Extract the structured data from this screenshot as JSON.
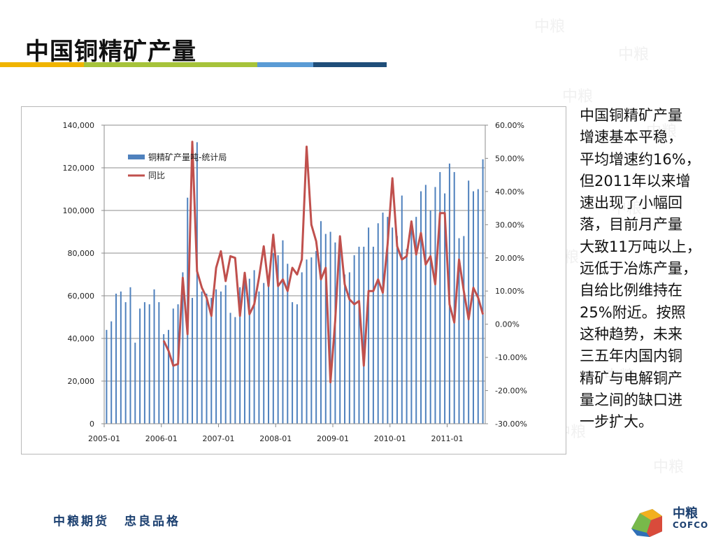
{
  "page": {
    "title": "中国铜精矿产量",
    "description": "中国铜精矿产量增速基本平稳，平均增速约16%，但2011年以来增速出现了小幅回落，目前月产量大致11万吨以上，远低于冶炼产量，自给比例维持在25%附近。按照这种趋势，未来三五年内国内铜精矿与电解铜产量之间的缺口进一步扩大。",
    "description_lines": [
      "中国铜精矿产量",
      "增速基本平稳，",
      "平均增速约16%，",
      "但2011年以来增",
      "速出现了小幅回",
      "落，目前月产量",
      "大致11万吨以上，",
      "远低于冶炼产量，",
      "自给比例维持在",
      "25%附近。按照",
      "这种趋势，未来",
      "三五年内国内铜",
      "精矿与电解铜产",
      "量之间的缺口进",
      "一步扩大。"
    ],
    "footer_left": [
      "中粮期货",
      "忠良品格"
    ],
    "logo_cn": "中粮",
    "logo_en": "COFCO",
    "colors": {
      "bar": "#4f81bd",
      "line": "#c0504d",
      "title_rule": [
        "#f0b400",
        "#a6c33a",
        "#5a9bd5",
        "#1f4e79"
      ],
      "footer_text": "#1c4070"
    },
    "watermark_text": "中粮"
  },
  "chart_data": {
    "type": "bar",
    "x_tick_labels": [
      "2005-01",
      "2006-01",
      "2007-01",
      "2008-01",
      "2009-01",
      "2010-01",
      "2011-01"
    ],
    "y_left_ticks": [
      "0",
      "20,000",
      "40,000",
      "60,000",
      "80,000",
      "100,000",
      "120,000",
      "140,000"
    ],
    "y_right_ticks": [
      "-30.00%",
      "-20.00%",
      "-10.00%",
      "0.00%",
      "10.00%",
      "20.00%",
      "30.00%",
      "40.00%",
      "50.00%",
      "60.00%"
    ],
    "ylim_left": [
      0,
      140000
    ],
    "ylim_right": [
      -30,
      60
    ],
    "grid": "horizontal",
    "legend_position": "top-left",
    "series": [
      {
        "name": "铜精矿产量吨-统计局",
        "type": "bar",
        "axis": "left",
        "start": "2005-01",
        "values": [
          44000,
          48000,
          61000,
          62000,
          57000,
          64000,
          38000,
          54000,
          57000,
          56000,
          63000,
          57000,
          42000,
          44000,
          54000,
          56000,
          71000,
          106000,
          59000,
          132000,
          62000,
          61000,
          59000,
          63000,
          62000,
          65000,
          52000,
          50000,
          64000,
          67000,
          68000,
          72000,
          62000,
          66000,
          67000,
          80000,
          79000,
          86000,
          75000,
          57000,
          56000,
          71000,
          77000,
          78000,
          81000,
          95000,
          89000,
          90000,
          85000,
          84000,
          70000,
          71000,
          79000,
          83000,
          83000,
          92000,
          83000,
          94000,
          99000,
          97000,
          92000,
          88000,
          107000,
          82000,
          95000,
          97000,
          109000,
          112000,
          100000,
          111000,
          118000,
          108000,
          122000,
          118000,
          87000,
          88000,
          114000,
          109000,
          110000,
          124000
        ]
      },
      {
        "name": "同比",
        "type": "line",
        "axis": "right",
        "start": "2006-01",
        "values": [
          -5,
          -8,
          -12.5,
          -12,
          14,
          -3,
          55,
          16,
          11,
          8,
          2.5,
          17,
          22,
          13,
          20.5,
          20,
          2.5,
          15.5,
          3,
          6,
          14,
          23.5,
          11.5,
          27,
          11.5,
          13.5,
          10,
          17,
          15,
          19.5,
          53.5,
          30,
          25,
          13.5,
          17,
          -17.5,
          1,
          26.5,
          12,
          7.5,
          6,
          7,
          -12.5,
          10,
          10,
          13.5,
          9.5,
          24,
          44,
          23.5,
          19.5,
          20.5,
          31,
          21,
          27.5,
          18,
          20.5,
          12,
          33.5,
          33.5,
          6,
          0.5,
          19.5,
          10,
          1.5,
          11,
          8,
          3
        ]
      }
    ]
  }
}
